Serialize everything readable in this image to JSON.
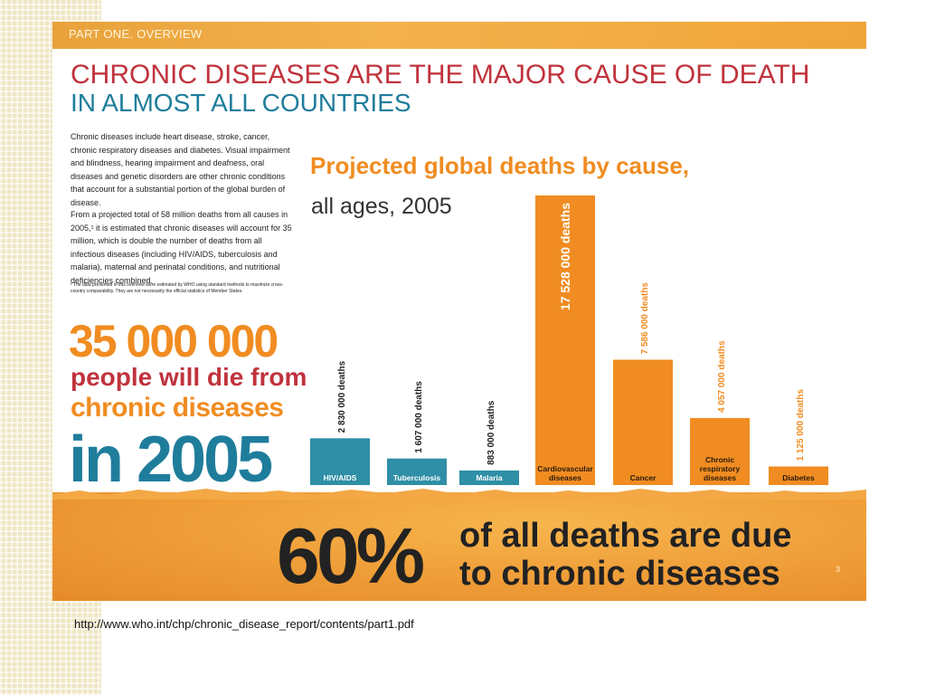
{
  "section_label": "PART ONE. OVERVIEW",
  "headline": {
    "line1": "CHRONIC DISEASES ARE THE MAJOR CAUSE OF DEATH",
    "line2": "IN ALMOST ALL COUNTRIES"
  },
  "body": {
    "p1": "Chronic diseases include heart disease, stroke, cancer, chronic respiratory diseases and diabetes. Visual impairment and blindness, hearing impairment and deafness, oral diseases and genetic disorders are other chronic conditions that account for a substantial portion of the global burden of disease.",
    "p2": "From a projected total of 58 million deaths from all causes in 2005,¹ it is estimated that chronic diseases will account for 35 million, which is double the number of deaths from all infectious diseases (including HIV/AIDS, tuberculosis and malaria), maternal and perinatal conditions, and nutritional deficiencies combined.",
    "footnote": "¹ The data presented in this overview were estimated by WHO using standard methods to maximize cross-country comparability. They are not necessarily the official statistics of Member States."
  },
  "callout": {
    "number": "35 000 000",
    "line2": "people will die from",
    "line3": "chronic diseases",
    "line4": "in 2005"
  },
  "bottom": {
    "percent": "60%",
    "line1": "of all deaths are due",
    "line2": "to chronic diseases"
  },
  "page_number": "3",
  "source_url": "http://www.who.int/chp/chronic_disease_report/contents/part1.pdf",
  "colors": {
    "orange": "#f08c21",
    "teal": "#2f8fa6",
    "red": "#c0333d"
  },
  "chart_data": {
    "type": "bar",
    "title": "Projected global deaths by cause,",
    "subtitle": "all ages, 2005",
    "categories": [
      "HIV/AIDS",
      "Tuberculosis",
      "Malaria",
      "Cardiovascular diseases",
      "Cancer",
      "Chronic respiratory diseases",
      "Diabetes"
    ],
    "values": [
      2830000,
      1607000,
      883000,
      17528000,
      7586000,
      4057000,
      1125000
    ],
    "value_labels": [
      "2 830 000 deaths",
      "1 607 000 deaths",
      "883 000 deaths",
      "17 528 000 deaths",
      "7 586 000 deaths",
      "4 057 000 deaths",
      "1 125 000 deaths"
    ],
    "groups": [
      "infectious",
      "infectious",
      "infectious",
      "chronic",
      "chronic",
      "chronic",
      "chronic"
    ],
    "group_colors": {
      "infectious": "#2f8fa6",
      "chronic": "#f08c21"
    },
    "ylim": [
      0,
      17528000
    ],
    "grid": false,
    "legend": "none"
  }
}
